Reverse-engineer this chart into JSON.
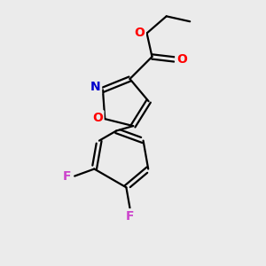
{
  "background_color": "#ebebeb",
  "bond_color": "#000000",
  "bond_width": 1.6,
  "atom_colors": {
    "O": "#ff0000",
    "N": "#0000cc",
    "F": "#cc44cc",
    "C": "#000000"
  },
  "font_size": 10,
  "fig_width": 3.0,
  "fig_height": 3.0,
  "dpi": 100,
  "xlim": [
    0,
    10
  ],
  "ylim": [
    0,
    10
  ]
}
